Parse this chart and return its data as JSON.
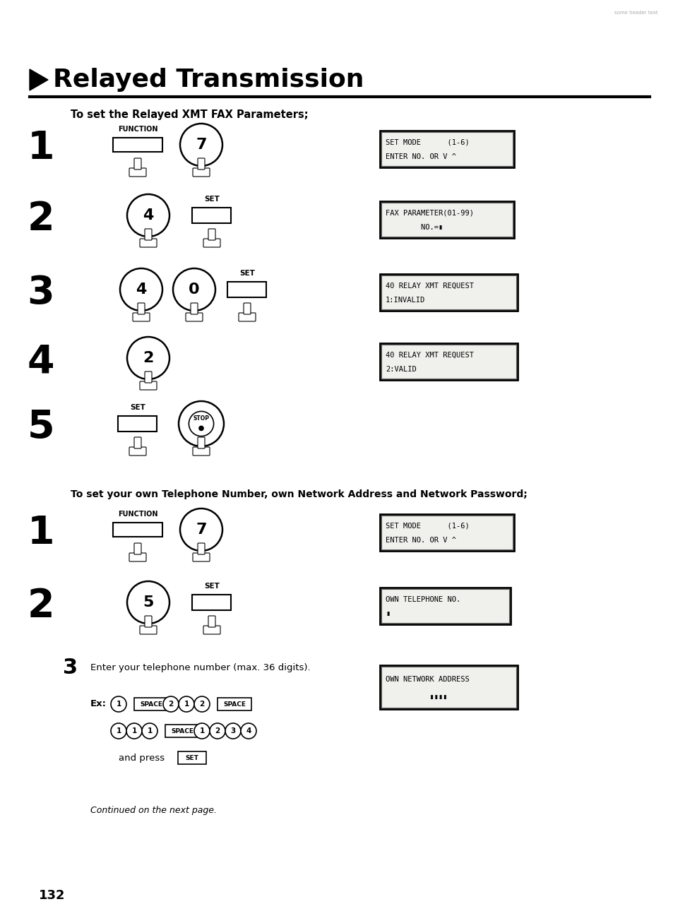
{
  "bg_color": "#ffffff",
  "title": "Relayed Transmission",
  "section1_label": "To set the Relayed XMT FAX Parameters;",
  "section2_label": "To set your own Telephone Number, own Network Address and Network Password;",
  "page_number": "132",
  "continued": "Continued on the next page.",
  "fig_w": 9.54,
  "fig_h": 12.97,
  "dpi": 100
}
